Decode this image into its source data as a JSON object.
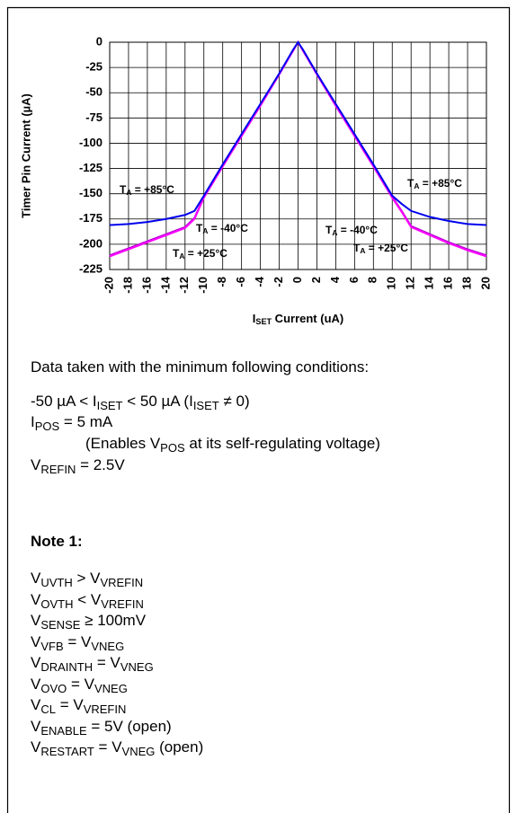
{
  "chart_data": {
    "type": "line",
    "ylabel": "Timer Pin Current (µA)",
    "xlabel": [
      "I",
      "SET",
      " Current (uA)"
    ],
    "x": [
      -20,
      -18,
      -16,
      -14,
      -12,
      -11,
      -10,
      -8,
      -6,
      -4,
      -2,
      -0.5,
      0,
      0.5,
      2,
      4,
      6,
      8,
      10,
      11,
      12,
      14,
      16,
      18,
      20
    ],
    "series": [
      {
        "name": "+85°C",
        "color": "#0000ee",
        "values": [
          -181,
          -180,
          -178,
          -175,
          -171,
          -167,
          -152,
          -121,
          -91,
          -61,
          -31,
          -7,
          0,
          -7,
          -31,
          -61,
          -91,
          -121,
          -152,
          -160,
          -167,
          -173,
          -177,
          -180,
          -181
        ]
      },
      {
        "name": "+25°C",
        "color": "#ff00ff",
        "values": [
          -212,
          -205,
          -198,
          -191,
          -184,
          -175,
          -154,
          -123,
          -93,
          -63,
          -32,
          -8,
          0,
          -8,
          -32,
          -63,
          -93,
          -123,
          -154,
          -168,
          -183,
          -191,
          -199,
          -206,
          -212
        ]
      },
      {
        "name": "-40°C",
        "color": "#b000d0",
        "values": [
          -211,
          -204,
          -197,
          -190,
          -183,
          -174,
          -153,
          -122,
          -92,
          -62,
          -31,
          -8,
          0,
          -8,
          -31,
          -62,
          -92,
          -122,
          -153,
          -167,
          -182,
          -190,
          -198,
          -205,
          -211
        ]
      }
    ],
    "xlim": [
      -20,
      20
    ],
    "xticks": [
      -20,
      -18,
      -16,
      -14,
      -12,
      -10,
      -8,
      -6,
      -4,
      -2,
      0,
      2,
      4,
      6,
      8,
      10,
      12,
      14,
      16,
      18,
      20
    ],
    "ylim": [
      -225,
      0
    ],
    "yticks": [
      0,
      -25,
      -50,
      -75,
      -100,
      -125,
      -150,
      -175,
      -200,
      -225
    ],
    "grid": true,
    "annotations": [
      [
        "T",
        "A",
        " = +85°C"
      ],
      [
        "T",
        "A",
        " = -40°C"
      ],
      [
        "T",
        "A",
        " = +25°C"
      ],
      [
        "T",
        "A",
        " = +85°C"
      ],
      [
        "T",
        "A",
        " = -40°C"
      ],
      [
        "T",
        "A",
        " = +25°C"
      ]
    ]
  },
  "notes": {
    "intro": "Data taken with the minimum following conditions:",
    "conditions": [
      [
        "-50 µA < I",
        "ISET",
        " < 50 µA (I",
        "ISET",
        " ≠ 0)"
      ],
      [
        "I",
        "POS",
        " = 5 mA"
      ],
      [
        "(Enables V",
        "POS",
        " at its self-regulating voltage)"
      ],
      [
        "V",
        "REFIN",
        " = 2.5V"
      ]
    ],
    "note_title": "Note 1:",
    "note_lines": [
      [
        "V",
        "UVTH",
        " > V",
        "VREFIN"
      ],
      [
        "V",
        "OVTH",
        " < V",
        "VREFIN"
      ],
      [
        "V",
        "SENSE",
        " ≥ 100mV"
      ],
      [
        "V",
        "VFB",
        " = V",
        "VNEG"
      ],
      [
        "V",
        "DRAINTH",
        " = V",
        "VNEG"
      ],
      [
        "V",
        "OVO",
        " = V",
        "VNEG"
      ],
      [
        "V",
        "CL",
        " = V",
        "VREFIN"
      ],
      [
        "V",
        "ENABLE",
        " = 5V (open)"
      ],
      [
        "V",
        "RESTART",
        " = V",
        "VNEG",
        " (open)"
      ]
    ]
  }
}
